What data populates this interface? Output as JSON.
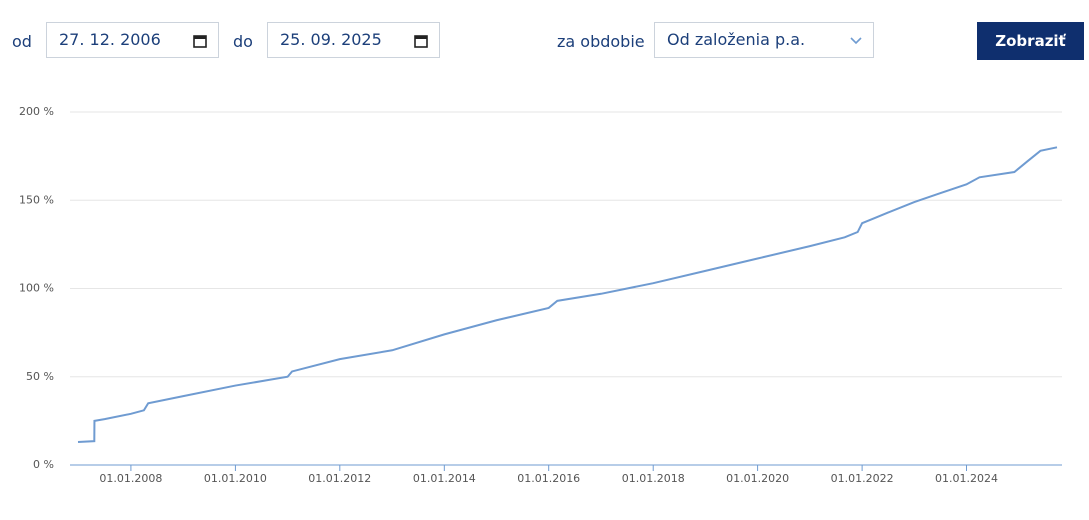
{
  "form": {
    "from_label": "od",
    "from_value": "27. 12. 2006",
    "to_label": "do",
    "to_value": "25. 09. 2025",
    "period_label": "za obdobie",
    "period_value": "Od založenia p.a.",
    "button": "Zobraziť"
  },
  "chart_data": {
    "type": "line",
    "color": "#6f9bd1",
    "grid": true,
    "x": [
      "2006-12-27",
      "2007-04-20",
      "2007-04-21",
      "2007-07-01",
      "2008-01-01",
      "2008-04-01",
      "2008-05-01",
      "2009-01-01",
      "2010-01-01",
      "2011-01-01",
      "2011-02-01",
      "2012-01-01",
      "2013-01-01",
      "2014-01-01",
      "2015-01-01",
      "2016-01-01",
      "2016-03-01",
      "2017-01-01",
      "2018-01-01",
      "2019-01-01",
      "2020-01-01",
      "2021-01-01",
      "2021-09-01",
      "2021-12-01",
      "2022-01-01",
      "2022-04-01",
      "2022-07-01",
      "2023-01-01",
      "2023-07-01",
      "2024-01-01",
      "2024-04-01",
      "2024-12-01",
      "2025-03-01",
      "2025-06-01",
      "2025-09-25"
    ],
    "values": [
      13,
      13.5,
      25,
      26,
      29,
      31,
      35,
      39,
      45,
      50,
      53,
      60,
      65,
      74,
      82,
      89,
      93,
      97,
      103,
      110,
      117,
      124,
      129,
      132,
      137,
      140,
      143,
      149,
      154,
      159,
      163,
      166,
      172,
      178,
      180
    ],
    "xlim": [
      "2006-12-27",
      "2025-09-25"
    ],
    "xticks": [
      {
        "value": "2008-01-01",
        "label": "01.01.2008"
      },
      {
        "value": "2010-01-01",
        "label": "01.01.2010"
      },
      {
        "value": "2012-01-01",
        "label": "01.01.2012"
      },
      {
        "value": "2014-01-01",
        "label": "01.01.2014"
      },
      {
        "value": "2016-01-01",
        "label": "01.01.2016"
      },
      {
        "value": "2018-01-01",
        "label": "01.01.2018"
      },
      {
        "value": "2020-01-01",
        "label": "01.01.2020"
      },
      {
        "value": "2022-01-01",
        "label": "01.01.2022"
      },
      {
        "value": "2024-01-01",
        "label": "01.01.2024"
      }
    ],
    "ylim": [
      0,
      200
    ],
    "yticks": [
      {
        "value": 0,
        "label": "0 %"
      },
      {
        "value": 50,
        "label": "50 %"
      },
      {
        "value": 100,
        "label": "100 %"
      },
      {
        "value": 150,
        "label": "150 %"
      },
      {
        "value": 200,
        "label": "200 %"
      }
    ]
  }
}
